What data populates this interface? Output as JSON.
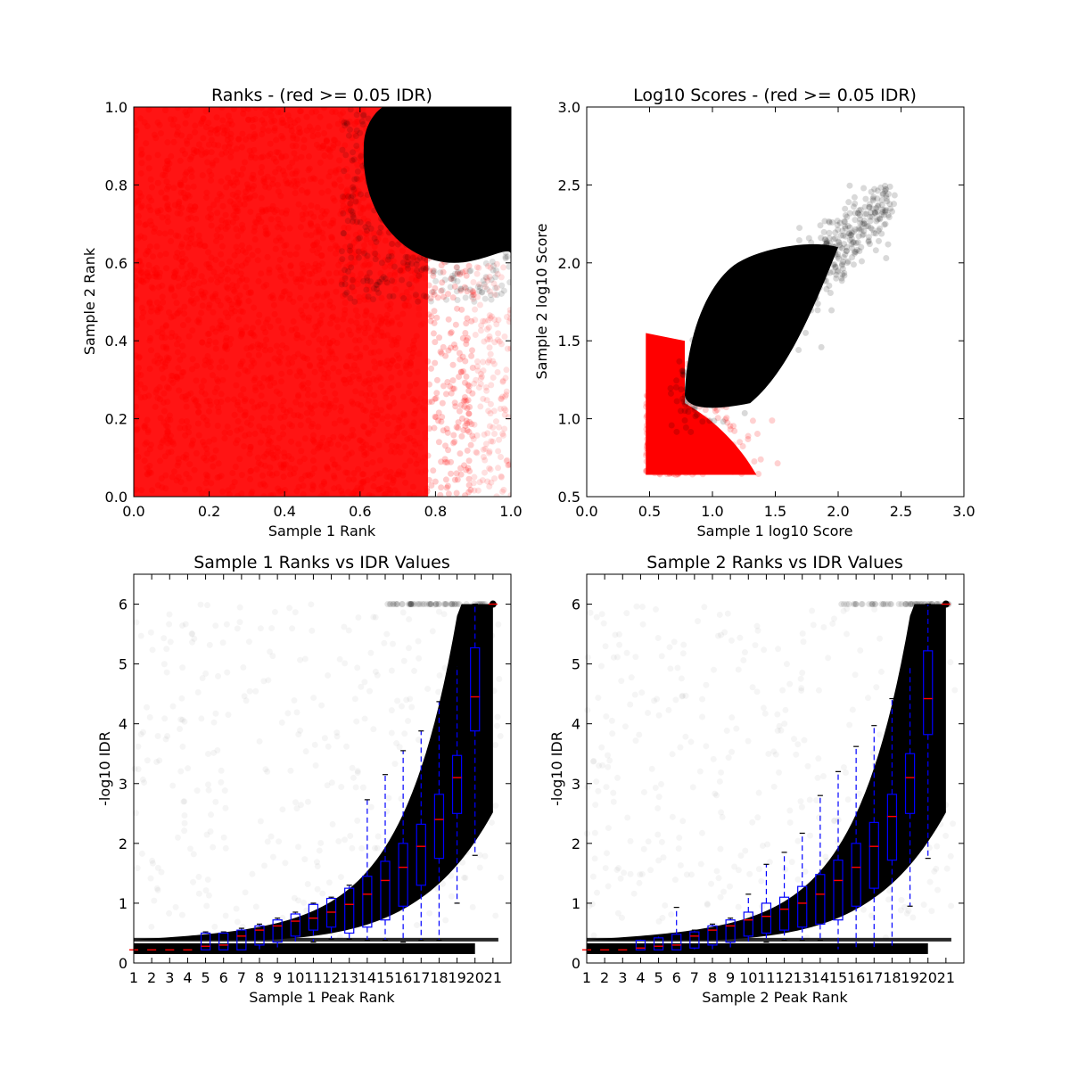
{
  "colors": {
    "pass": "#000000",
    "fail": "#ff0000",
    "box": "#0000ff",
    "median": "#ff0000",
    "background": "#ffffff"
  },
  "chart_data": [
    {
      "type": "scatter",
      "title": "Ranks - (red >= 0.05 IDR)",
      "xlabel": "Sample 1 Rank",
      "ylabel": "Sample 2 Rank",
      "xlim": [
        0.0,
        1.0
      ],
      "ylim": [
        0.0,
        1.0
      ],
      "xticks": [
        "0.0",
        "0.2",
        "0.4",
        "0.6",
        "0.8",
        "1.0"
      ],
      "yticks": [
        "0.0",
        "0.2",
        "0.4",
        "0.6",
        "0.8",
        "1.0"
      ],
      "series": [
        {
          "color": "#ff0000",
          "region": "uniform over rank square, IDR >= 0.05",
          "x_range": [
            0.0,
            1.0
          ],
          "y_range": [
            0.0,
            1.0
          ]
        },
        {
          "color": "#000000",
          "region": "top-right corner, both ranks high, IDR < 0.05",
          "x_range": [
            0.6,
            1.0
          ],
          "y_range": [
            0.6,
            1.0
          ]
        }
      ],
      "grid": false
    },
    {
      "type": "scatter",
      "title": "Log10 Scores - (red >= 0.05 IDR)",
      "xlabel": "Sample 1 log10 Score",
      "ylabel": "Sample 2 log10 Score",
      "xlim": [
        0.0,
        3.0
      ],
      "ylim": [
        0.5,
        3.0
      ],
      "xticks": [
        "0.0",
        "0.5",
        "1.0",
        "1.5",
        "2.0",
        "2.5",
        "3.0"
      ],
      "yticks": [
        "0.5",
        "1.0",
        "1.5",
        "2.0",
        "2.5",
        "3.0"
      ],
      "series": [
        {
          "color": "#ff0000",
          "region": "low scores, IDR >= 0.05",
          "x_range": [
            0.47,
            1.6
          ],
          "y_range": [
            0.64,
            1.6
          ]
        },
        {
          "color": "#000000",
          "region": "high scores, IDR < 0.05",
          "x_range": [
            0.5,
            2.45
          ],
          "y_range": [
            0.64,
            2.47
          ]
        }
      ],
      "grid": false
    },
    {
      "type": "box",
      "title": "Sample 1 Ranks vs IDR Values",
      "xlabel": "Sample 1 Peak Rank",
      "ylabel": "-log10 IDR",
      "xlim": [
        0,
        21
      ],
      "ylim": [
        0,
        6.5
      ],
      "xticks": [
        "1",
        "2",
        "3",
        "4",
        "5",
        "6",
        "7",
        "8",
        "9",
        "10",
        "11",
        "12",
        "13",
        "14",
        "15",
        "16",
        "17",
        "18",
        "19",
        "20",
        "21"
      ],
      "yticks": [
        "0",
        "1",
        "2",
        "3",
        "4",
        "5",
        "6"
      ],
      "boxes": [
        {
          "bin": 1,
          "q1": 0.22,
          "median": 0.22,
          "q3": 0.22,
          "whisker_low": 0.22,
          "whisker_high": 0.22
        },
        {
          "bin": 2,
          "q1": 0.22,
          "median": 0.22,
          "q3": 0.22,
          "whisker_low": 0.22,
          "whisker_high": 0.22
        },
        {
          "bin": 3,
          "q1": 0.22,
          "median": 0.22,
          "q3": 0.22,
          "whisker_low": 0.22,
          "whisker_high": 0.22
        },
        {
          "bin": 4,
          "q1": 0.22,
          "median": 0.22,
          "q3": 0.22,
          "whisker_low": 0.22,
          "whisker_high": 0.22
        },
        {
          "bin": 5,
          "q1": 0.22,
          "median": 0.28,
          "q3": 0.5,
          "whisker_low": 0.22,
          "whisker_high": 0.52
        },
        {
          "bin": 6,
          "q1": 0.22,
          "median": 0.3,
          "q3": 0.5,
          "whisker_low": 0.22,
          "whisker_high": 0.52
        },
        {
          "bin": 7,
          "q1": 0.22,
          "median": 0.45,
          "q3": 0.55,
          "whisker_low": 0.22,
          "whisker_high": 0.58
        },
        {
          "bin": 8,
          "q1": 0.3,
          "median": 0.55,
          "q3": 0.62,
          "whisker_low": 0.22,
          "whisker_high": 0.65
        },
        {
          "bin": 9,
          "q1": 0.35,
          "median": 0.62,
          "q3": 0.72,
          "whisker_low": 0.25,
          "whisker_high": 0.75
        },
        {
          "bin": 10,
          "q1": 0.45,
          "median": 0.7,
          "q3": 0.82,
          "whisker_low": 0.3,
          "whisker_high": 0.85
        },
        {
          "bin": 11,
          "q1": 0.55,
          "median": 0.75,
          "q3": 0.98,
          "whisker_low": 0.35,
          "whisker_high": 1.0
        },
        {
          "bin": 12,
          "q1": 0.6,
          "median": 0.85,
          "q3": 1.08,
          "whisker_low": 0.4,
          "whisker_high": 1.1
        },
        {
          "bin": 13,
          "q1": 0.5,
          "median": 0.98,
          "q3": 1.25,
          "whisker_low": 0.4,
          "whisker_high": 1.3
        },
        {
          "bin": 14,
          "q1": 0.6,
          "median": 1.15,
          "q3": 1.45,
          "whisker_low": 0.38,
          "whisker_high": 2.73
        },
        {
          "bin": 15,
          "q1": 0.72,
          "median": 1.38,
          "q3": 1.7,
          "whisker_low": 0.38,
          "whisker_high": 3.15
        },
        {
          "bin": 16,
          "q1": 0.95,
          "median": 1.6,
          "q3": 2.0,
          "whisker_low": 0.35,
          "whisker_high": 3.55
        },
        {
          "bin": 17,
          "q1": 1.3,
          "median": 1.95,
          "q3": 2.32,
          "whisker_low": 0.38,
          "whisker_high": 3.88
        },
        {
          "bin": 18,
          "q1": 1.75,
          "median": 2.4,
          "q3": 2.82,
          "whisker_low": 0.38,
          "whisker_high": 4.37
        },
        {
          "bin": 19,
          "q1": 2.5,
          "median": 3.1,
          "q3": 3.47,
          "whisker_low": 1.0,
          "whisker_high": 4.97
        },
        {
          "bin": 20,
          "q1": 3.88,
          "median": 4.45,
          "q3": 5.27,
          "whisker_low": 1.8,
          "whisker_high": 6.0
        },
        {
          "bin": 21,
          "q1": 6.0,
          "median": 6.0,
          "q3": 6.0,
          "whisker_low": 6.0,
          "whisker_high": 6.0
        }
      ],
      "grid": false
    },
    {
      "type": "box",
      "title": "Sample 2 Ranks vs IDR Values",
      "xlabel": "Sample 2 Peak Rank",
      "ylabel": "-log10 IDR",
      "xlim": [
        0,
        21
      ],
      "ylim": [
        0,
        6.5
      ],
      "xticks": [
        "1",
        "2",
        "3",
        "4",
        "5",
        "6",
        "7",
        "8",
        "9",
        "10",
        "11",
        "12",
        "13",
        "14",
        "15",
        "16",
        "17",
        "18",
        "19",
        "20",
        "21"
      ],
      "yticks": [
        "0",
        "1",
        "2",
        "3",
        "4",
        "5",
        "6"
      ],
      "boxes": [
        {
          "bin": 1,
          "q1": 0.22,
          "median": 0.22,
          "q3": 0.22,
          "whisker_low": 0.22,
          "whisker_high": 0.22
        },
        {
          "bin": 2,
          "q1": 0.22,
          "median": 0.22,
          "q3": 0.22,
          "whisker_low": 0.22,
          "whisker_high": 0.22
        },
        {
          "bin": 3,
          "q1": 0.22,
          "median": 0.22,
          "q3": 0.22,
          "whisker_low": 0.22,
          "whisker_high": 0.22
        },
        {
          "bin": 4,
          "q1": 0.22,
          "median": 0.25,
          "q3": 0.38,
          "whisker_low": 0.22,
          "whisker_high": 0.4
        },
        {
          "bin": 5,
          "q1": 0.22,
          "median": 0.28,
          "q3": 0.42,
          "whisker_low": 0.22,
          "whisker_high": 0.45
        },
        {
          "bin": 6,
          "q1": 0.22,
          "median": 0.3,
          "q3": 0.48,
          "whisker_low": 0.22,
          "whisker_high": 0.93
        },
        {
          "bin": 7,
          "q1": 0.25,
          "median": 0.45,
          "q3": 0.52,
          "whisker_low": 0.22,
          "whisker_high": 0.55
        },
        {
          "bin": 8,
          "q1": 0.3,
          "median": 0.55,
          "q3": 0.62,
          "whisker_low": 0.22,
          "whisker_high": 0.65
        },
        {
          "bin": 9,
          "q1": 0.35,
          "median": 0.62,
          "q3": 0.72,
          "whisker_low": 0.25,
          "whisker_high": 0.75
        },
        {
          "bin": 10,
          "q1": 0.45,
          "median": 0.72,
          "q3": 0.85,
          "whisker_low": 0.3,
          "whisker_high": 1.15
        },
        {
          "bin": 11,
          "q1": 0.5,
          "median": 0.78,
          "q3": 1.0,
          "whisker_low": 0.35,
          "whisker_high": 1.65
        },
        {
          "bin": 12,
          "q1": 0.55,
          "median": 0.9,
          "q3": 1.1,
          "whisker_low": 0.38,
          "whisker_high": 1.85
        },
        {
          "bin": 13,
          "q1": 0.6,
          "median": 1.0,
          "q3": 1.28,
          "whisker_low": 0.38,
          "whisker_high": 2.17
        },
        {
          "bin": 14,
          "q1": 0.65,
          "median": 1.15,
          "q3": 1.48,
          "whisker_low": 0.38,
          "whisker_high": 2.8
        },
        {
          "bin": 15,
          "q1": 0.72,
          "median": 1.38,
          "q3": 1.72,
          "whisker_low": 0.22,
          "whisker_high": 3.2
        },
        {
          "bin": 16,
          "q1": 0.95,
          "median": 1.6,
          "q3": 2.0,
          "whisker_low": 0.22,
          "whisker_high": 3.62
        },
        {
          "bin": 17,
          "q1": 1.25,
          "median": 1.95,
          "q3": 2.35,
          "whisker_low": 0.22,
          "whisker_high": 3.97
        },
        {
          "bin": 18,
          "q1": 1.72,
          "median": 2.45,
          "q3": 2.82,
          "whisker_low": 0.22,
          "whisker_high": 4.42
        },
        {
          "bin": 19,
          "q1": 2.5,
          "median": 3.1,
          "q3": 3.5,
          "whisker_low": 0.95,
          "whisker_high": 4.97
        },
        {
          "bin": 20,
          "q1": 3.82,
          "median": 4.42,
          "q3": 5.22,
          "whisker_low": 1.75,
          "whisker_high": 6.0
        },
        {
          "bin": 21,
          "q1": 6.0,
          "median": 6.0,
          "q3": 6.0,
          "whisker_low": 6.0,
          "whisker_high": 6.0
        }
      ],
      "grid": false
    }
  ]
}
